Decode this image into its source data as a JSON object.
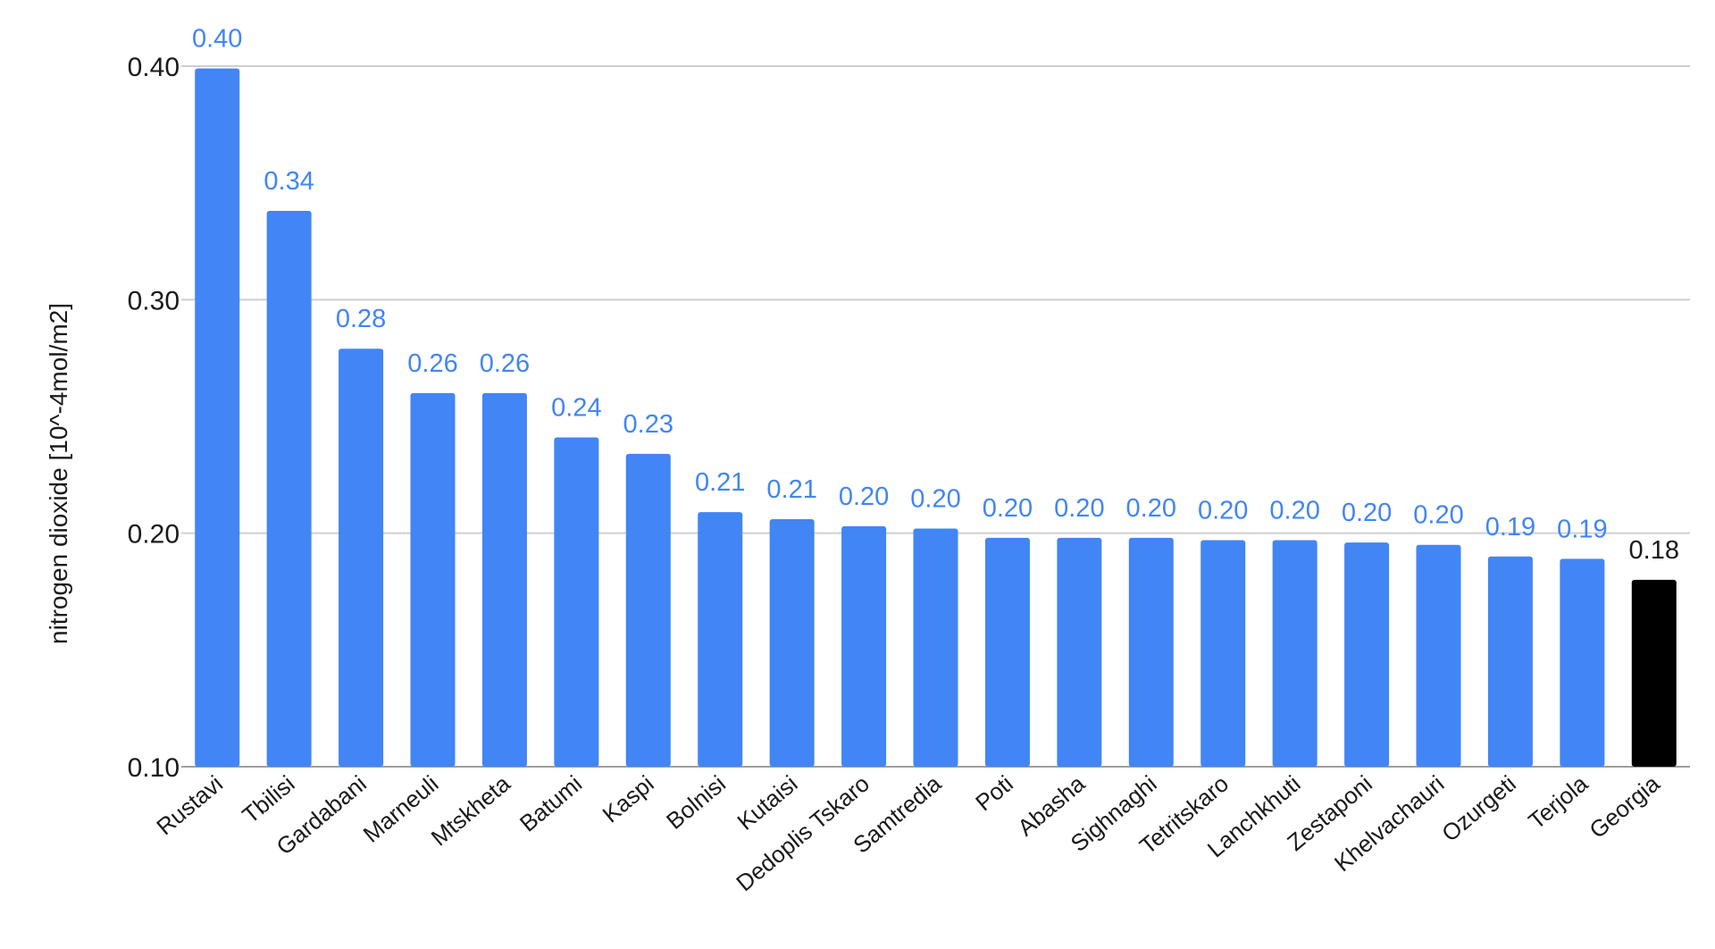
{
  "chart_data": {
    "type": "bar",
    "title": "",
    "xlabel": "",
    "ylabel": "nitrogen dioxide [10^-4mol/m2]",
    "ylim": [
      0.1,
      0.4
    ],
    "yticks": [
      "0.10",
      "0.20",
      "0.30",
      "0.40"
    ],
    "grid": true,
    "legend": "none",
    "default_color": "#4285F4",
    "highlight_color": "#000000",
    "highlight_label_color": "#1a1a1a",
    "categories": [
      "Rustavi",
      "Tbilisi",
      "Gardabani",
      "Marneuli",
      "Mtskheta",
      "Batumi",
      "Kaspi",
      "Bolnisi",
      "Kutaisi",
      "Dedoplis Tskaro",
      "Samtredia",
      "Poti",
      "Abasha",
      "Sighnaghi",
      "Tetritskaro",
      "Lanchkhuti",
      "Zestaponi",
      "Khelvachauri",
      "Ozurgeti",
      "Terjola",
      "Georgia"
    ],
    "values": [
      0.399,
      0.338,
      0.279,
      0.26,
      0.26,
      0.241,
      0.234,
      0.209,
      0.206,
      0.203,
      0.202,
      0.198,
      0.198,
      0.198,
      0.197,
      0.197,
      0.196,
      0.195,
      0.19,
      0.189,
      0.18
    ],
    "data_labels": [
      "0.40",
      "0.34",
      "0.28",
      "0.26",
      "0.26",
      "0.24",
      "0.23",
      "0.21",
      "0.21",
      "0.20",
      "0.20",
      "0.20",
      "0.20",
      "0.20",
      "0.20",
      "0.20",
      "0.20",
      "0.20",
      "0.19",
      "0.19",
      "0.18"
    ],
    "highlight_category": "Georgia"
  }
}
